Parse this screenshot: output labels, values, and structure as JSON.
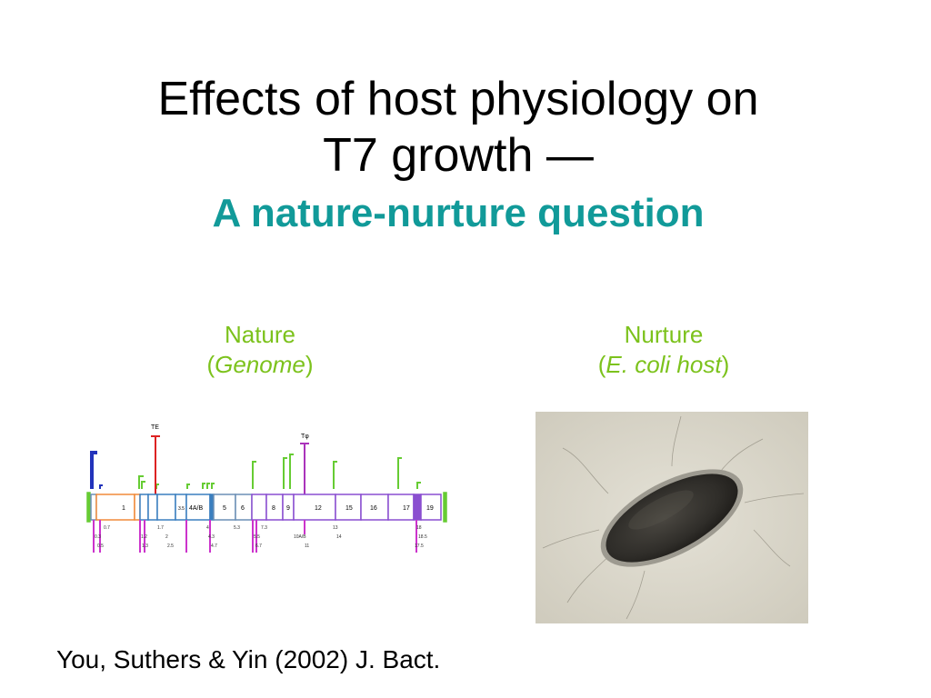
{
  "slide": {
    "title_line1": "Effects of host physiology on",
    "title_line2": "T7 growth —",
    "title_line3": "A nature-nurture question",
    "accent_color": "#119a99",
    "label_color": "#7cc21c"
  },
  "nature": {
    "label": "Nature",
    "paren_open": "(",
    "sub_label": "Genome",
    "paren_close": ")"
  },
  "nurture": {
    "label": "Nurture",
    "paren_open": "(",
    "sub_label": "E. coli host",
    "paren_close": ")"
  },
  "genome_map": {
    "markers": [
      "TE",
      "Tφ"
    ],
    "genes_in_bar": [
      "1",
      "3.5",
      "4A/B",
      "5",
      "6",
      "8",
      "9",
      "12",
      "15",
      "16",
      "17",
      "19"
    ],
    "labels_row1": [
      "0.7",
      "1.7",
      "4",
      "5.3",
      "7.3",
      "13",
      "18"
    ],
    "labels_row2": [
      "0.3",
      "1.2",
      "2",
      "4.3",
      "5.5",
      "10A/B",
      "14",
      "18.5"
    ],
    "labels_row3": [
      "0.5",
      "1.3",
      "2.5",
      "4.7",
      "6.7",
      "11",
      "17.5"
    ]
  },
  "citation": "You, Suthers & Yin (2002) J. Bact."
}
